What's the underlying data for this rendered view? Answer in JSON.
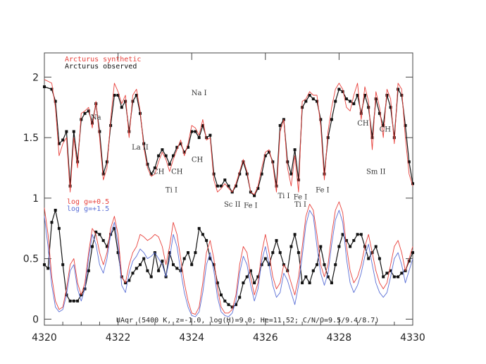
{
  "chart_data": {
    "type": "line",
    "title": "",
    "xlabel": "",
    "ylabel": "",
    "xlim": [
      4320,
      4330
    ],
    "ylim": [
      -0.05,
      2.2
    ],
    "x_ticks": [
      4320,
      4322,
      4324,
      4326,
      4328,
      4330
    ],
    "y_ticks": [
      0,
      0.5,
      1,
      1.5,
      2
    ],
    "y_tick_labels": [
      "0",
      "0.5",
      "1",
      "1.5",
      "2"
    ],
    "legend_top": [
      {
        "label": "Arcturus synthetic",
        "color": "#e8413c"
      },
      {
        "label": "Arcturus observed",
        "color": "#111111"
      }
    ],
    "legend_bottom": [
      {
        "label": "log g=+0.5",
        "color": "#e8413c"
      },
      {
        "label": "log g=+1.5",
        "color": "#5a6fd6"
      }
    ],
    "caption": "UAqr (5400 K, z=-1.0, log(H)=9.0; He=11.52; C/N/O=9.5/9.4/8.7)",
    "line_labels": [
      {
        "text": "Na",
        "x": 4321.4,
        "y": 1.65
      },
      {
        "text": "La II",
        "x": 4322.6,
        "y": 1.4
      },
      {
        "text": "CH",
        "x": 4323.1,
        "y": 1.2
      },
      {
        "text": "CH",
        "x": 4323.6,
        "y": 1.2
      },
      {
        "text": "Ti I",
        "x": 4323.45,
        "y": 1.05
      },
      {
        "text": "Na I",
        "x": 4324.2,
        "y": 1.85
      },
      {
        "text": "CH",
        "x": 4324.15,
        "y": 1.3
      },
      {
        "text": "Sc II",
        "x": 4325.1,
        "y": 0.93
      },
      {
        "text": "Fe I",
        "x": 4325.6,
        "y": 0.92
      },
      {
        "text": "Ti I",
        "x": 4326.5,
        "y": 1.0
      },
      {
        "text": "Fe I",
        "x": 4326.95,
        "y": 0.99
      },
      {
        "text": "Ti I",
        "x": 4326.95,
        "y": 0.93
      },
      {
        "text": "Fe I",
        "x": 4327.55,
        "y": 1.05
      },
      {
        "text": "CH",
        "x": 4328.65,
        "y": 1.6
      },
      {
        "text": "CH",
        "x": 4329.25,
        "y": 1.55
      },
      {
        "text": "Sm II",
        "x": 4329.0,
        "y": 1.2
      }
    ],
    "series": [
      {
        "color": "#111111",
        "style": "points-line",
        "x": [
          4320.0,
          4320.2,
          4320.3,
          4320.4,
          4320.5,
          4320.6,
          4320.7,
          4320.8,
          4320.9,
          4321.0,
          4321.1,
          4321.2,
          4321.3,
          4321.4,
          4321.5,
          4321.6,
          4321.7,
          4321.8,
          4321.9,
          4322.0,
          4322.1,
          4322.2,
          4322.3,
          4322.4,
          4322.5,
          4322.6,
          4322.7,
          4322.8,
          4322.9,
          4323.0,
          4323.1,
          4323.2,
          4323.3,
          4323.4,
          4323.5,
          4323.6,
          4323.7,
          4323.8,
          4323.9,
          4324.0,
          4324.1,
          4324.2,
          4324.3,
          4324.4,
          4324.5,
          4324.6,
          4324.7,
          4324.8,
          4324.9,
          4325.0,
          4325.1,
          4325.2,
          4325.3,
          4325.4,
          4325.5,
          4325.6,
          4325.7,
          4325.8,
          4325.9,
          4326.0,
          4326.1,
          4326.2,
          4326.3,
          4326.4,
          4326.5,
          4326.6,
          4326.7,
          4326.8,
          4326.9,
          4327.0,
          4327.1,
          4327.2,
          4327.3,
          4327.4,
          4327.5,
          4327.6,
          4327.7,
          4327.8,
          4327.9,
          4328.0,
          4328.1,
          4328.2,
          4328.3,
          4328.4,
          4328.5,
          4328.6,
          4328.7,
          4328.8,
          4328.9,
          4329.0,
          4329.1,
          4329.2,
          4329.3,
          4329.4,
          4329.5,
          4329.6,
          4329.7,
          4329.8,
          4329.9,
          4330.0
        ],
        "y": [
          1.92,
          1.9,
          1.8,
          1.45,
          1.48,
          1.55,
          1.1,
          1.55,
          1.3,
          1.65,
          1.7,
          1.72,
          1.62,
          1.78,
          1.55,
          1.2,
          1.3,
          1.6,
          1.85,
          1.85,
          1.75,
          1.8,
          1.55,
          1.8,
          1.85,
          1.7,
          1.45,
          1.28,
          1.2,
          1.25,
          1.35,
          1.4,
          1.35,
          1.28,
          1.35,
          1.42,
          1.45,
          1.38,
          1.42,
          1.55,
          1.55,
          1.5,
          1.6,
          1.5,
          1.52,
          1.2,
          1.1,
          1.1,
          1.15,
          1.1,
          1.05,
          1.1,
          1.2,
          1.3,
          1.2,
          1.05,
          1.02,
          1.08,
          1.2,
          1.35,
          1.38,
          1.3,
          1.1,
          1.6,
          1.65,
          1.3,
          1.2,
          1.4,
          1.15,
          1.75,
          1.8,
          1.85,
          1.82,
          1.8,
          1.65,
          1.2,
          1.5,
          1.65,
          1.8,
          1.9,
          1.88,
          1.82,
          1.8,
          1.78,
          1.85,
          1.7,
          1.85,
          1.75,
          1.5,
          1.82,
          1.7,
          1.6,
          1.85,
          1.75,
          1.5,
          1.9,
          1.85,
          1.6,
          1.3,
          1.12
        ]
      },
      {
        "color": "#e8413c",
        "style": "line",
        "x": [
          4320.0,
          4320.2,
          4320.3,
          4320.4,
          4320.5,
          4320.6,
          4320.7,
          4320.8,
          4320.9,
          4321.0,
          4321.1,
          4321.2,
          4321.3,
          4321.4,
          4321.5,
          4321.6,
          4321.7,
          4321.8,
          4321.9,
          4322.0,
          4322.1,
          4322.2,
          4322.3,
          4322.4,
          4322.5,
          4322.6,
          4322.7,
          4322.8,
          4322.9,
          4323.0,
          4323.1,
          4323.2,
          4323.3,
          4323.4,
          4323.5,
          4323.6,
          4323.7,
          4323.8,
          4323.9,
          4324.0,
          4324.1,
          4324.2,
          4324.3,
          4324.4,
          4324.5,
          4324.6,
          4324.7,
          4324.8,
          4324.9,
          4325.0,
          4325.1,
          4325.2,
          4325.3,
          4325.4,
          4325.5,
          4325.6,
          4325.7,
          4325.8,
          4325.9,
          4326.0,
          4326.1,
          4326.2,
          4326.3,
          4326.4,
          4326.5,
          4326.6,
          4326.7,
          4326.8,
          4326.9,
          4327.0,
          4327.1,
          4327.2,
          4327.3,
          4327.4,
          4327.5,
          4327.6,
          4327.7,
          4327.8,
          4327.9,
          4328.0,
          4328.1,
          4328.2,
          4328.3,
          4328.4,
          4328.5,
          4328.6,
          4328.7,
          4328.8,
          4328.9,
          4329.0,
          4329.1,
          4329.2,
          4329.3,
          4329.4,
          4329.5,
          4329.6,
          4329.7,
          4329.8,
          4329.9,
          4330.0
        ],
        "y": [
          1.98,
          1.95,
          1.75,
          1.35,
          1.45,
          1.5,
          1.05,
          1.5,
          1.25,
          1.7,
          1.72,
          1.75,
          1.58,
          1.8,
          1.5,
          1.15,
          1.25,
          1.65,
          1.95,
          1.88,
          1.78,
          1.85,
          1.5,
          1.85,
          1.9,
          1.72,
          1.42,
          1.25,
          1.18,
          1.2,
          1.3,
          1.38,
          1.32,
          1.22,
          1.32,
          1.4,
          1.48,
          1.35,
          1.45,
          1.6,
          1.58,
          1.52,
          1.65,
          1.48,
          1.5,
          1.15,
          1.05,
          1.08,
          1.12,
          1.08,
          1.05,
          1.12,
          1.22,
          1.32,
          1.22,
          1.05,
          1.03,
          1.1,
          1.25,
          1.38,
          1.4,
          1.28,
          1.05,
          1.55,
          1.65,
          1.25,
          1.1,
          1.35,
          1.05,
          1.8,
          1.82,
          1.88,
          1.85,
          1.85,
          1.6,
          1.15,
          1.55,
          1.75,
          1.9,
          1.95,
          1.9,
          1.75,
          1.72,
          1.85,
          1.95,
          1.65,
          1.92,
          1.8,
          1.4,
          1.88,
          1.75,
          1.5,
          1.9,
          1.82,
          1.45,
          1.95,
          1.9,
          1.5,
          1.2,
          1.1
        ]
      },
      {
        "color": "#111111",
        "style": "points-line",
        "x": [
          4320.0,
          4320.1,
          4320.2,
          4320.3,
          4320.4,
          4320.5,
          4320.6,
          4320.7,
          4320.8,
          4320.9,
          4321.0,
          4321.1,
          4321.2,
          4321.3,
          4321.4,
          4321.5,
          4321.6,
          4321.7,
          4321.8,
          4321.9,
          4322.0,
          4322.1,
          4322.2,
          4322.3,
          4322.4,
          4322.5,
          4322.6,
          4322.7,
          4322.8,
          4322.9,
          4323.0,
          4323.1,
          4323.2,
          4323.3,
          4323.4,
          4323.5,
          4323.6,
          4323.7,
          4323.8,
          4323.9,
          4324.0,
          4324.1,
          4324.2,
          4324.3,
          4324.4,
          4324.5,
          4324.6,
          4324.7,
          4324.8,
          4324.9,
          4325.0,
          4325.1,
          4325.2,
          4325.3,
          4325.4,
          4325.5,
          4325.6,
          4325.7,
          4325.8,
          4325.9,
          4326.0,
          4326.1,
          4326.2,
          4326.3,
          4326.4,
          4326.5,
          4326.6,
          4326.7,
          4326.8,
          4326.9,
          4327.0,
          4327.1,
          4327.2,
          4327.3,
          4327.4,
          4327.5,
          4327.6,
          4327.7,
          4327.8,
          4327.9,
          4328.0,
          4328.1,
          4328.2,
          4328.3,
          4328.4,
          4328.5,
          4328.6,
          4328.7,
          4328.8,
          4328.9,
          4329.0,
          4329.1,
          4329.2,
          4329.3,
          4329.4,
          4329.5,
          4329.6,
          4329.7,
          4329.8,
          4329.9,
          4330.0
        ],
        "y": [
          0.45,
          0.42,
          0.8,
          0.9,
          0.75,
          0.45,
          0.2,
          0.15,
          0.15,
          0.15,
          0.2,
          0.25,
          0.4,
          0.6,
          0.72,
          0.7,
          0.65,
          0.6,
          0.7,
          0.75,
          0.55,
          0.35,
          0.3,
          0.32,
          0.38,
          0.42,
          0.45,
          0.5,
          0.4,
          0.35,
          0.55,
          0.4,
          0.48,
          0.35,
          0.55,
          0.45,
          0.42,
          0.4,
          0.5,
          0.55,
          0.45,
          0.55,
          0.75,
          0.7,
          0.65,
          0.5,
          0.45,
          0.3,
          0.2,
          0.15,
          0.12,
          0.1,
          0.12,
          0.18,
          0.3,
          0.35,
          0.4,
          0.3,
          0.35,
          0.45,
          0.5,
          0.45,
          0.55,
          0.65,
          0.55,
          0.45,
          0.4,
          0.6,
          0.7,
          0.55,
          0.3,
          0.35,
          0.3,
          0.4,
          0.45,
          0.6,
          0.45,
          0.35,
          0.3,
          0.45,
          0.6,
          0.7,
          0.65,
          0.6,
          0.65,
          0.7,
          0.7,
          0.6,
          0.5,
          0.55,
          0.6,
          0.5,
          0.35,
          0.38,
          0.4,
          0.35,
          0.35,
          0.38,
          0.4,
          0.48,
          0.55
        ]
      },
      {
        "color": "#e8413c",
        "style": "line",
        "x": [
          4320.0,
          4320.1,
          4320.2,
          4320.3,
          4320.4,
          4320.5,
          4320.6,
          4320.7,
          4320.8,
          4320.9,
          4321.0,
          4321.1,
          4321.2,
          4321.3,
          4321.4,
          4321.5,
          4321.6,
          4321.7,
          4321.8,
          4321.9,
          4322.0,
          4322.1,
          4322.2,
          4322.3,
          4322.4,
          4322.5,
          4322.6,
          4322.7,
          4322.8,
          4322.9,
          4323.0,
          4323.1,
          4323.2,
          4323.3,
          4323.4,
          4323.5,
          4323.6,
          4323.7,
          4323.8,
          4323.9,
          4324.0,
          4324.1,
          4324.2,
          4324.3,
          4324.4,
          4324.5,
          4324.6,
          4324.7,
          4324.8,
          4324.9,
          4325.0,
          4325.1,
          4325.2,
          4325.3,
          4325.4,
          4325.5,
          4325.6,
          4325.7,
          4325.8,
          4325.9,
          4326.0,
          4326.1,
          4326.2,
          4326.3,
          4326.4,
          4326.5,
          4326.6,
          4326.7,
          4326.8,
          4326.9,
          4327.0,
          4327.1,
          4327.2,
          4327.3,
          4327.4,
          4327.5,
          4327.6,
          4327.7,
          4327.8,
          4327.9,
          4328.0,
          4328.1,
          4328.2,
          4328.3,
          4328.4,
          4328.5,
          4328.6,
          4328.7,
          4328.8,
          4328.9,
          4329.0,
          4329.1,
          4329.2,
          4329.3,
          4329.4,
          4329.5,
          4329.6,
          4329.7,
          4329.8,
          4329.9,
          4330.0
        ],
        "y": [
          0.92,
          0.7,
          0.35,
          0.15,
          0.08,
          0.1,
          0.25,
          0.45,
          0.5,
          0.3,
          0.2,
          0.3,
          0.55,
          0.75,
          0.7,
          0.55,
          0.45,
          0.55,
          0.75,
          0.85,
          0.7,
          0.35,
          0.3,
          0.45,
          0.55,
          0.6,
          0.7,
          0.68,
          0.65,
          0.67,
          0.7,
          0.68,
          0.6,
          0.45,
          0.6,
          0.8,
          0.7,
          0.5,
          0.3,
          0.15,
          0.05,
          0.04,
          0.1,
          0.3,
          0.55,
          0.65,
          0.5,
          0.25,
          0.1,
          0.05,
          0.05,
          0.08,
          0.2,
          0.45,
          0.6,
          0.55,
          0.35,
          0.2,
          0.3,
          0.55,
          0.7,
          0.55,
          0.35,
          0.25,
          0.3,
          0.45,
          0.4,
          0.3,
          0.2,
          0.35,
          0.6,
          0.85,
          0.95,
          0.9,
          0.7,
          0.45,
          0.35,
          0.45,
          0.7,
          0.9,
          0.97,
          0.88,
          0.6,
          0.4,
          0.3,
          0.35,
          0.45,
          0.6,
          0.7,
          0.55,
          0.4,
          0.3,
          0.25,
          0.3,
          0.45,
          0.6,
          0.65,
          0.55,
          0.4,
          0.5,
          0.6
        ]
      },
      {
        "color": "#5a6fd6",
        "style": "line",
        "x": [
          4320.0,
          4320.1,
          4320.2,
          4320.3,
          4320.4,
          4320.5,
          4320.6,
          4320.7,
          4320.8,
          4320.9,
          4321.0,
          4321.1,
          4321.2,
          4321.3,
          4321.4,
          4321.5,
          4321.6,
          4321.7,
          4321.8,
          4321.9,
          4322.0,
          4322.1,
          4322.2,
          4322.3,
          4322.4,
          4322.5,
          4322.6,
          4322.7,
          4322.8,
          4322.9,
          4323.0,
          4323.1,
          4323.2,
          4323.3,
          4323.4,
          4323.5,
          4323.6,
          4323.7,
          4323.8,
          4323.9,
          4324.0,
          4324.1,
          4324.2,
          4324.3,
          4324.4,
          4324.5,
          4324.6,
          4324.7,
          4324.8,
          4324.9,
          4325.0,
          4325.1,
          4325.2,
          4325.3,
          4325.4,
          4325.5,
          4325.6,
          4325.7,
          4325.8,
          4325.9,
          4326.0,
          4326.1,
          4326.2,
          4326.3,
          4326.4,
          4326.5,
          4326.6,
          4326.7,
          4326.8,
          4326.9,
          4327.0,
          4327.1,
          4327.2,
          4327.3,
          4327.4,
          4327.5,
          4327.6,
          4327.7,
          4327.8,
          4327.9,
          4328.0,
          4328.1,
          4328.2,
          4328.3,
          4328.4,
          4328.5,
          4328.6,
          4328.7,
          4328.8,
          4328.9,
          4329.0,
          4329.1,
          4329.2,
          4329.3,
          4329.4,
          4329.5,
          4329.6,
          4329.7,
          4329.8,
          4329.9,
          4330.0
        ],
        "y": [
          0.85,
          0.6,
          0.28,
          0.1,
          0.06,
          0.08,
          0.2,
          0.4,
          0.45,
          0.25,
          0.15,
          0.25,
          0.5,
          0.7,
          0.62,
          0.45,
          0.38,
          0.5,
          0.7,
          0.8,
          0.62,
          0.28,
          0.22,
          0.38,
          0.48,
          0.52,
          0.58,
          0.55,
          0.5,
          0.52,
          0.55,
          0.5,
          0.45,
          0.35,
          0.5,
          0.7,
          0.6,
          0.4,
          0.22,
          0.1,
          0.03,
          0.02,
          0.06,
          0.22,
          0.45,
          0.55,
          0.4,
          0.18,
          0.06,
          0.03,
          0.02,
          0.05,
          0.15,
          0.38,
          0.52,
          0.45,
          0.28,
          0.15,
          0.25,
          0.48,
          0.6,
          0.45,
          0.28,
          0.18,
          0.22,
          0.38,
          0.32,
          0.22,
          0.12,
          0.28,
          0.52,
          0.78,
          0.9,
          0.85,
          0.6,
          0.38,
          0.28,
          0.38,
          0.62,
          0.82,
          0.9,
          0.8,
          0.5,
          0.3,
          0.22,
          0.28,
          0.38,
          0.52,
          0.62,
          0.45,
          0.3,
          0.22,
          0.18,
          0.22,
          0.35,
          0.5,
          0.55,
          0.45,
          0.3,
          0.4,
          0.5
        ]
      }
    ]
  }
}
